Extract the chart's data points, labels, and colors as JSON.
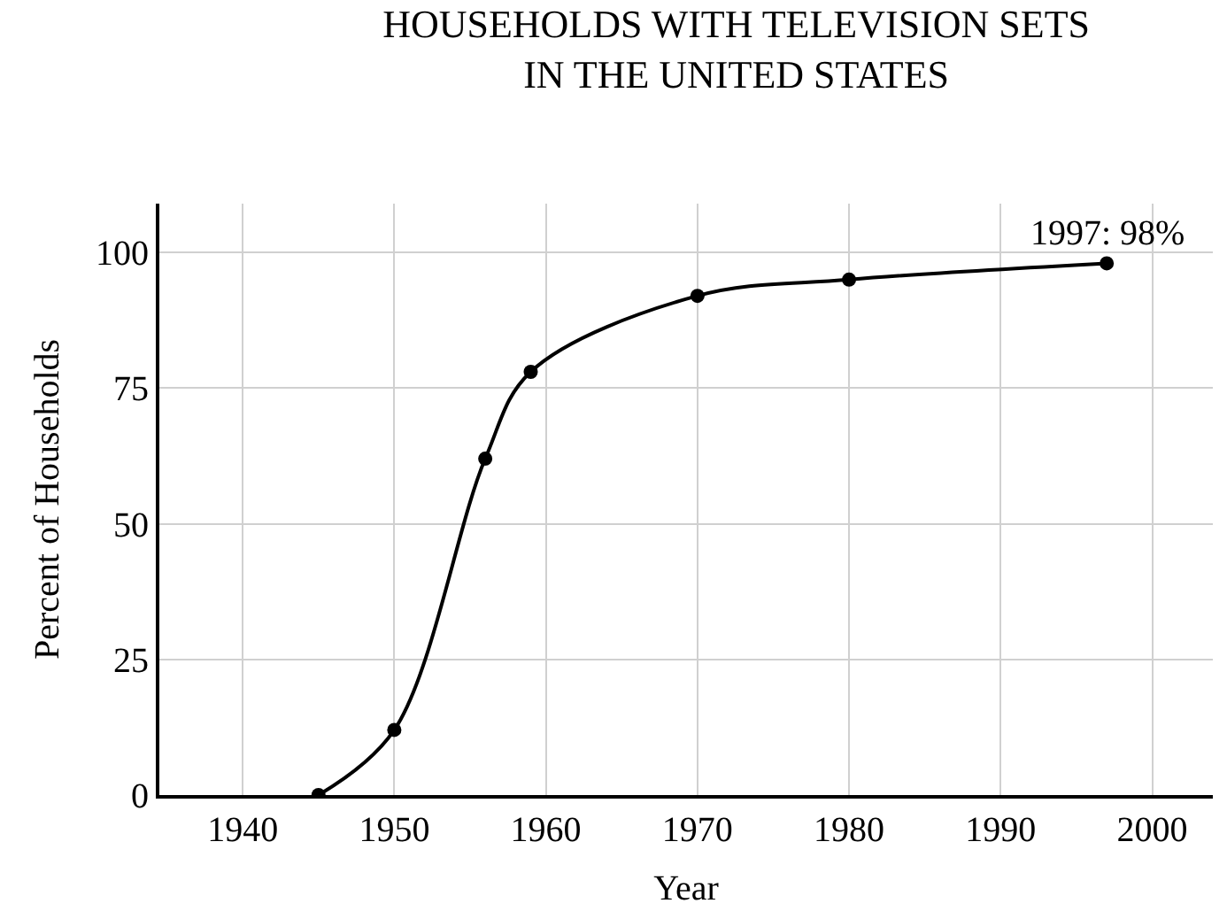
{
  "chart_data": {
    "type": "line",
    "title": "HOUSEHOLDS WITH TELEVISION SETS\nIN THE UNITED STATES",
    "xlabel": "Year",
    "ylabel": "Percent of Households",
    "x": [
      1945,
      1950,
      1956,
      1959,
      1970,
      1980,
      1997
    ],
    "series": [
      {
        "color": "#000000",
        "values": [
          0,
          12,
          62,
          78,
          92,
          95,
          98
        ]
      }
    ],
    "xlim": [
      1934.5,
      2004
    ],
    "xticks": [
      1940,
      1950,
      1960,
      1970,
      1980,
      1990,
      2000
    ],
    "ylim": [
      0,
      109
    ],
    "yticks": [
      0,
      25,
      50,
      75,
      100
    ],
    "grid": true,
    "marker": "circle",
    "line_style": "solid",
    "annotations": [
      {
        "text": "1997: 98%",
        "x": 1997,
        "y": 98
      }
    ]
  }
}
